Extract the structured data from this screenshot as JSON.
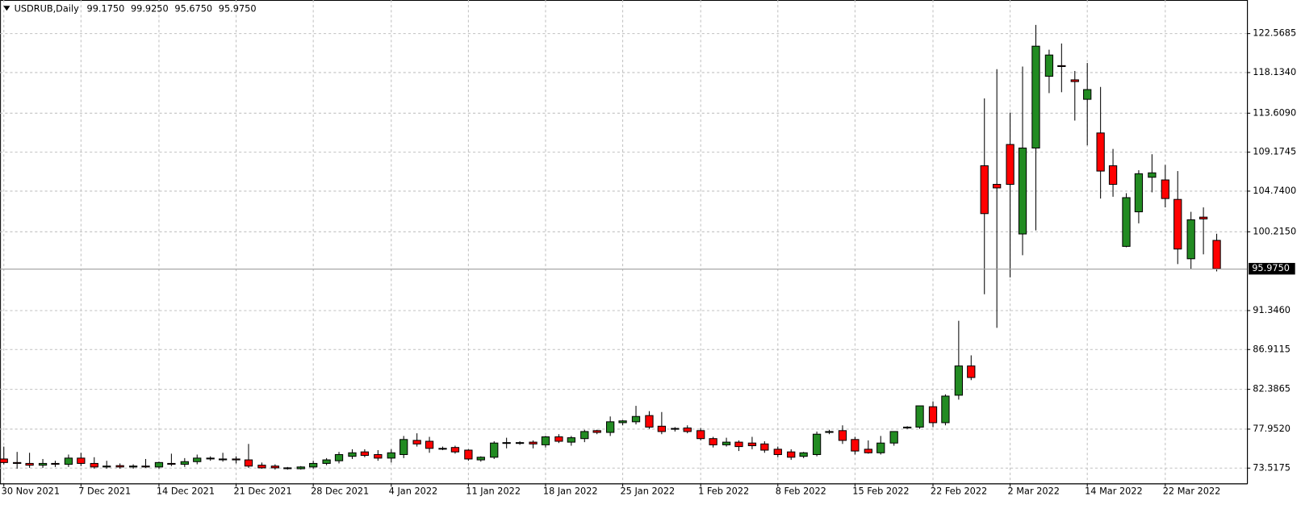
{
  "chart_data": {
    "type": "candlestick",
    "title": "USDRUB,Daily",
    "header_values": [
      "99.1750",
      "99.9250",
      "95.6750",
      "95.9750"
    ],
    "categories": [
      "30 Nov 2021",
      null,
      null,
      null,
      null,
      null,
      "7 Dec 2021",
      null,
      null,
      null,
      null,
      null,
      "14 Dec 2021",
      null,
      null,
      null,
      null,
      null,
      "21 Dec 2021",
      null,
      null,
      null,
      null,
      null,
      "28 Dec 2021",
      null,
      null,
      null,
      null,
      null,
      "4 Jan 2022",
      null,
      null,
      null,
      null,
      null,
      "11 Jan 2022",
      null,
      null,
      null,
      null,
      null,
      "18 Jan 2022",
      null,
      null,
      null,
      null,
      null,
      "25 Jan 2022",
      null,
      null,
      null,
      null,
      null,
      "1 Feb 2022",
      null,
      null,
      null,
      null,
      null,
      "8 Feb 2022",
      null,
      null,
      null,
      null,
      null,
      "15 Feb 2022",
      null,
      null,
      null,
      null,
      null,
      "22 Feb 2022",
      null,
      null,
      null,
      null,
      null,
      "2 Mar 2022",
      null,
      null,
      null,
      null,
      null,
      "14 Mar 2022",
      null,
      null,
      null,
      null,
      null,
      "22 Mar 2022",
      null,
      null,
      null,
      null
    ],
    "open": [
      74.5,
      74.1,
      74.0,
      73.8,
      74.0,
      73.9,
      74.6,
      74.0,
      73.6,
      73.75,
      73.6,
      73.7,
      73.6,
      74.0,
      73.9,
      74.2,
      74.6,
      74.5,
      74.5,
      74.4,
      73.8,
      73.7,
      73.5,
      73.4,
      73.6,
      74.0,
      74.3,
      74.8,
      75.3,
      75.0,
      74.6,
      75.0,
      76.6,
      76.5,
      75.7,
      75.8,
      75.5,
      74.4,
      74.7,
      76.3,
      76.3,
      76.4,
      76.1,
      77.0,
      76.4,
      76.8,
      77.7,
      77.5,
      78.6,
      78.7,
      79.4,
      78.2,
      77.9,
      78.0,
      77.7,
      76.8,
      76.1,
      76.4,
      76.3,
      76.2,
      75.6,
      75.3,
      74.8,
      75.0,
      77.5,
      77.7,
      76.7,
      75.6,
      75.2,
      76.3,
      78.0,
      78.1,
      80.4,
      78.6,
      81.7,
      85.0,
      107.6,
      105.5,
      110.0,
      99.9,
      109.6,
      117.7,
      118.9,
      117.3,
      115.1,
      111.3,
      107.6,
      98.5,
      102.4,
      106.3,
      106.0,
      103.8,
      97.1,
      101.8,
      99.175
    ],
    "high": [
      75.9,
      75.3,
      75.2,
      74.5,
      74.3,
      75.0,
      75.2,
      74.7,
      74.3,
      74.0,
      73.9,
      74.5,
      74.2,
      75.1,
      74.6,
      75.0,
      74.8,
      75.2,
      74.8,
      76.2,
      74.1,
      73.9,
      73.6,
      73.7,
      74.3,
      74.6,
      75.3,
      75.6,
      75.6,
      75.5,
      75.6,
      77.1,
      77.4,
      77.0,
      75.9,
      76.0,
      75.6,
      74.8,
      76.5,
      76.9,
      76.5,
      76.6,
      77.1,
      77.3,
      77.1,
      77.8,
      77.8,
      79.3,
      78.9,
      80.5,
      79.9,
      79.8,
      78.1,
      78.3,
      78.0,
      77.0,
      76.9,
      76.6,
      77.0,
      76.5,
      75.9,
      75.6,
      75.3,
      77.6,
      77.8,
      78.3,
      77.0,
      76.6,
      77.1,
      77.6,
      78.2,
      80.5,
      81.0,
      81.8,
      90.1,
      86.2,
      115.2,
      118.5,
      113.6,
      118.8,
      123.5,
      120.7,
      121.4,
      118.3,
      119.2,
      116.5,
      109.5,
      104.5,
      107.1,
      108.9,
      107.7,
      107.0,
      102.4,
      102.9,
      99.925
    ],
    "low": [
      73.9,
      73.4,
      73.5,
      73.5,
      73.6,
      73.6,
      73.7,
      73.4,
      73.4,
      73.4,
      73.4,
      73.5,
      73.4,
      73.7,
      73.6,
      73.9,
      74.3,
      74.2,
      74.0,
      73.5,
      73.4,
      73.3,
      73.3,
      73.3,
      73.4,
      73.8,
      74.0,
      74.5,
      74.7,
      74.3,
      74.1,
      74.6,
      75.9,
      75.2,
      75.5,
      75.1,
      74.3,
      74.2,
      74.5,
      75.7,
      76.1,
      75.7,
      75.8,
      76.3,
      76.0,
      76.4,
      77.3,
      77.1,
      78.3,
      78.4,
      77.9,
      77.3,
      77.6,
      77.4,
      76.6,
      75.8,
      75.9,
      75.4,
      75.6,
      75.2,
      74.7,
      74.4,
      74.6,
      74.8,
      77.3,
      76.2,
      75.0,
      75.1,
      75.0,
      76.0,
      77.9,
      77.9,
      78.1,
      78.3,
      81.2,
      83.4,
      93.1,
      89.3,
      95.0,
      97.5,
      100.3,
      115.8,
      115.9,
      112.7,
      109.9,
      103.9,
      104.1,
      98.4,
      101.1,
      104.6,
      102.9,
      96.5,
      95.9,
      97.6,
      95.675
    ],
    "close": [
      74.1,
      74.0,
      73.8,
      74.0,
      73.9,
      74.6,
      74.0,
      73.6,
      73.7,
      73.6,
      73.7,
      73.6,
      74.1,
      73.9,
      74.2,
      74.6,
      74.55,
      74.5,
      74.4,
      73.7,
      73.5,
      73.5,
      73.45,
      73.6,
      74.0,
      74.4,
      75.0,
      75.2,
      74.9,
      74.6,
      75.2,
      76.7,
      76.2,
      75.7,
      75.65,
      75.3,
      74.5,
      74.7,
      76.3,
      76.35,
      76.35,
      76.2,
      77.0,
      76.5,
      76.9,
      77.6,
      77.5,
      78.7,
      78.8,
      79.3,
      78.1,
      77.6,
      77.95,
      77.6,
      76.8,
      76.1,
      76.4,
      75.9,
      76.0,
      75.5,
      75.0,
      74.7,
      75.2,
      77.3,
      77.6,
      76.6,
      75.4,
      75.2,
      76.3,
      77.6,
      78.1,
      80.5,
      78.6,
      81.6,
      85.0,
      83.7,
      102.2,
      105.1,
      105.5,
      109.6,
      121.1,
      120.1,
      118.8,
      117.1,
      116.2,
      107.0,
      105.5,
      104.0,
      106.7,
      106.8,
      103.9,
      98.2,
      101.5,
      101.6,
      95.975
    ],
    "up_color": "#228b22",
    "down_color": "#ff0000",
    "ylim": [
      71.74,
      126.31
    ],
    "yticks": [
      {
        "value": 73.5175,
        "label": "73.5175"
      },
      {
        "value": 77.952,
        "label": "77.9520"
      },
      {
        "value": 82.3865,
        "label": "82.3865"
      },
      {
        "value": 86.9115,
        "label": "86.9115"
      },
      {
        "value": 91.346,
        "label": "91.3460"
      },
      {
        "value": 100.215,
        "label": "100.2150"
      },
      {
        "value": 104.74,
        "label": "104.7400"
      },
      {
        "value": 109.1745,
        "label": "109.1745"
      },
      {
        "value": 113.609,
        "label": "113.6090"
      },
      {
        "value": 118.134,
        "label": "118.1340"
      },
      {
        "value": 122.5685,
        "label": "122.5685"
      }
    ],
    "last_price": {
      "value": 95.975,
      "label": "95.9750"
    },
    "grid": true
  }
}
